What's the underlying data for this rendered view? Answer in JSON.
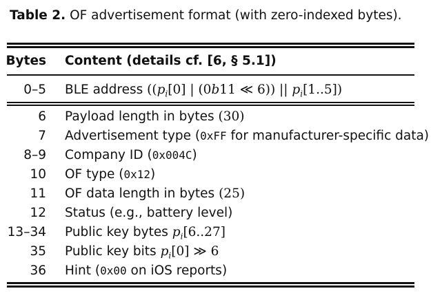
{
  "caption": {
    "label": "Table 2.",
    "text": "OF advertisement format (with zero-indexed bytes)."
  },
  "table": {
    "headers": {
      "bytes": "Bytes",
      "content": "Content (details cf. [6, § 5.1])"
    },
    "address_row": {
      "bytes": "0–5",
      "text": "BLE address",
      "expr": {
        "open": "((",
        "p": "p",
        "i": "i",
        "idx0": "[0] | (0",
        "b": "b",
        "bin": "11 ≪ 6)) || ",
        "range": "[1..5])"
      }
    },
    "rows": [
      {
        "bytes": "6",
        "text": "Payload length in bytes ",
        "paren_open": "(",
        "value": "30",
        "paren_close": ")"
      },
      {
        "bytes": "7",
        "text": "Advertisement type (",
        "code": "0xFF",
        "after": " for manufacturer-specific data)"
      },
      {
        "bytes": "8–9",
        "text": "Company ID (",
        "code": "0x004C",
        "after": ")"
      },
      {
        "bytes": "10",
        "text": "OF type (",
        "code": "0x12",
        "after": ")"
      },
      {
        "bytes": "11",
        "text": "OF data length in bytes ",
        "paren_open": "(",
        "value": "25",
        "paren_close": ")"
      },
      {
        "bytes": "12",
        "text": "Status (e.g., battery level)"
      },
      {
        "bytes": "13–34",
        "text": "Public key bytes ",
        "p": "p",
        "i": "i",
        "range": "[6..27]"
      },
      {
        "bytes": "35",
        "text": "Public key bits ",
        "p": "p",
        "i": "i",
        "tail": "[0] ≫ 6"
      },
      {
        "bytes": "36",
        "text": "Hint (",
        "code": "0x00",
        "after": " on iOS reports)"
      }
    ]
  }
}
